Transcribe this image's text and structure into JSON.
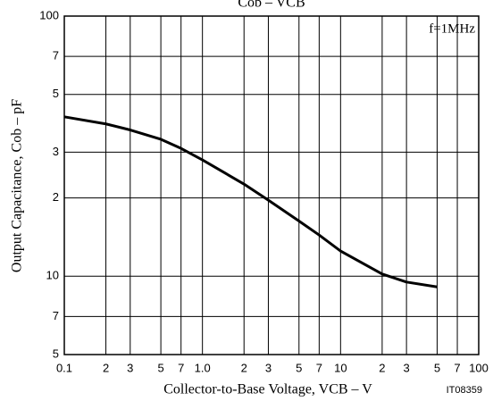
{
  "chart_data": {
    "type": "line",
    "title": "Cob – VCB",
    "xlabel": "Collector-to-Base Voltage, VCB – V",
    "ylabel": "Output Capacitance, Cob – pF",
    "annotations": [
      "f=1MHz",
      "IT08359"
    ],
    "xscale": "log",
    "yscale": "log",
    "grid": true,
    "xlim": [
      0.1,
      100
    ],
    "ylim": [
      5,
      100
    ],
    "xticks": [
      0.1,
      {
        "value": 0.2,
        "label": "2"
      },
      {
        "value": 0.3,
        "label": "3"
      },
      {
        "value": 0.5,
        "label": "5"
      },
      {
        "value": 0.7,
        "label": "7"
      },
      {
        "value": 1,
        "label": "1.0"
      },
      {
        "value": 2,
        "label": "2"
      },
      {
        "value": 3,
        "label": "3"
      },
      {
        "value": 5,
        "label": "5"
      },
      {
        "value": 7,
        "label": "7"
      },
      10,
      {
        "value": 20,
        "label": "2"
      },
      {
        "value": 30,
        "label": "3"
      },
      {
        "value": 50,
        "label": "5"
      },
      {
        "value": 70,
        "label": "7"
      },
      100
    ],
    "yticks": [
      5,
      7,
      10,
      {
        "value": 20,
        "label": "2"
      },
      {
        "value": 30,
        "label": "3"
      },
      {
        "value": 50,
        "label": "5"
      },
      {
        "value": 70,
        "label": "7"
      },
      100
    ],
    "series": [
      {
        "color": "#000000",
        "x": [
          0.1,
          0.2,
          0.3,
          0.5,
          0.7,
          1,
          2,
          3,
          5,
          7,
          10,
          20,
          30,
          50
        ],
        "values": [
          41,
          38.5,
          36.5,
          33.6,
          31,
          28,
          22.6,
          19.6,
          16.3,
          14.4,
          12.5,
          10.2,
          9.5,
          9.1
        ]
      }
    ]
  }
}
